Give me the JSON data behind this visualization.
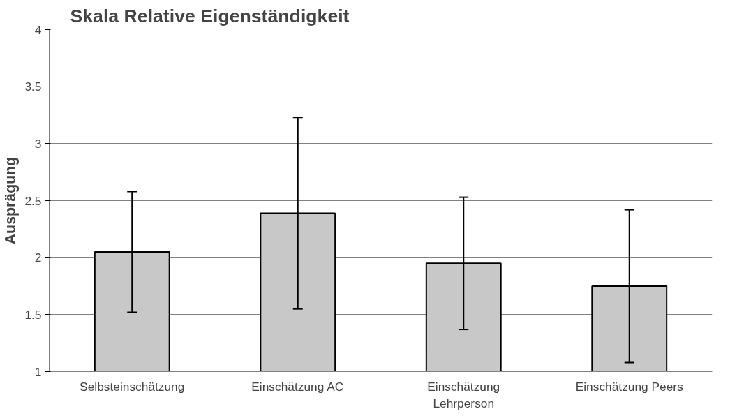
{
  "chart_data": {
    "type": "bar",
    "title": "Skala Relative Eigenständigkeit",
    "ylabel": "Ausprägung",
    "categories": [
      "Selbsteinschätzung",
      "Einschätzung AC",
      "Einschätzung Lehrperson",
      "Einschätzung Peers"
    ],
    "values": [
      2.05,
      2.39,
      1.95,
      1.75
    ],
    "errors": [
      0.53,
      0.84,
      0.58,
      0.67
    ],
    "color": "#c8c8c8",
    "ylim": [
      1,
      4
    ],
    "yticks": [
      1,
      1.5,
      2,
      2.5,
      3,
      3.5,
      4
    ],
    "grid": "y"
  }
}
